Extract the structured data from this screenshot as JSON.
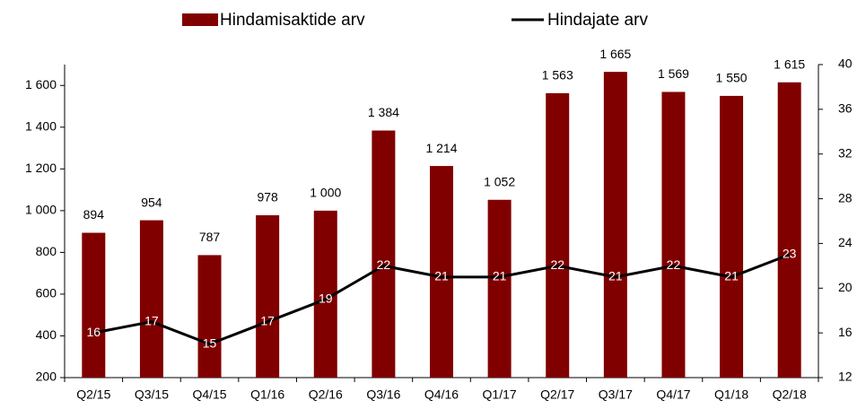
{
  "chart_data": {
    "type": "bar",
    "categories": [
      "Q2/15",
      "Q3/15",
      "Q4/15",
      "Q1/16",
      "Q2/16",
      "Q3/16",
      "Q4/16",
      "Q1/17",
      "Q2/17",
      "Q3/17",
      "Q4/17",
      "Q1/18",
      "Q2/18"
    ],
    "series": [
      {
        "name": "Hindamisaktide arv",
        "type": "bar",
        "color": "#800000",
        "values": [
          894,
          954,
          787,
          978,
          1000,
          1384,
          1214,
          1052,
          1563,
          1665,
          1569,
          1550,
          1615
        ],
        "value_labels": [
          "894",
          "954",
          "787",
          "978",
          "1 000",
          "1 384",
          "1 214",
          "1 052",
          "1 563",
          "1 665",
          "1 569",
          "1 550",
          "1 615"
        ]
      },
      {
        "name": "Hindajate arv",
        "type": "line",
        "color": "#000000",
        "axis": "y2",
        "values": [
          16,
          17,
          15,
          17,
          19,
          22,
          21,
          21,
          22,
          21,
          22,
          21,
          23
        ]
      }
    ],
    "ylim": [
      200,
      1700
    ],
    "yticks": [
      200,
      400,
      600,
      800,
      {
        "value": 1000,
        "label": "1 000"
      },
      {
        "value": 1200,
        "label": "1 200"
      },
      {
        "value": 1400,
        "label": "1 400"
      },
      {
        "value": 1600,
        "label": "1 600"
      }
    ],
    "y2lim": [
      12,
      40
    ],
    "y2ticks": [
      12,
      16,
      20,
      24,
      28,
      32,
      36,
      40
    ]
  }
}
